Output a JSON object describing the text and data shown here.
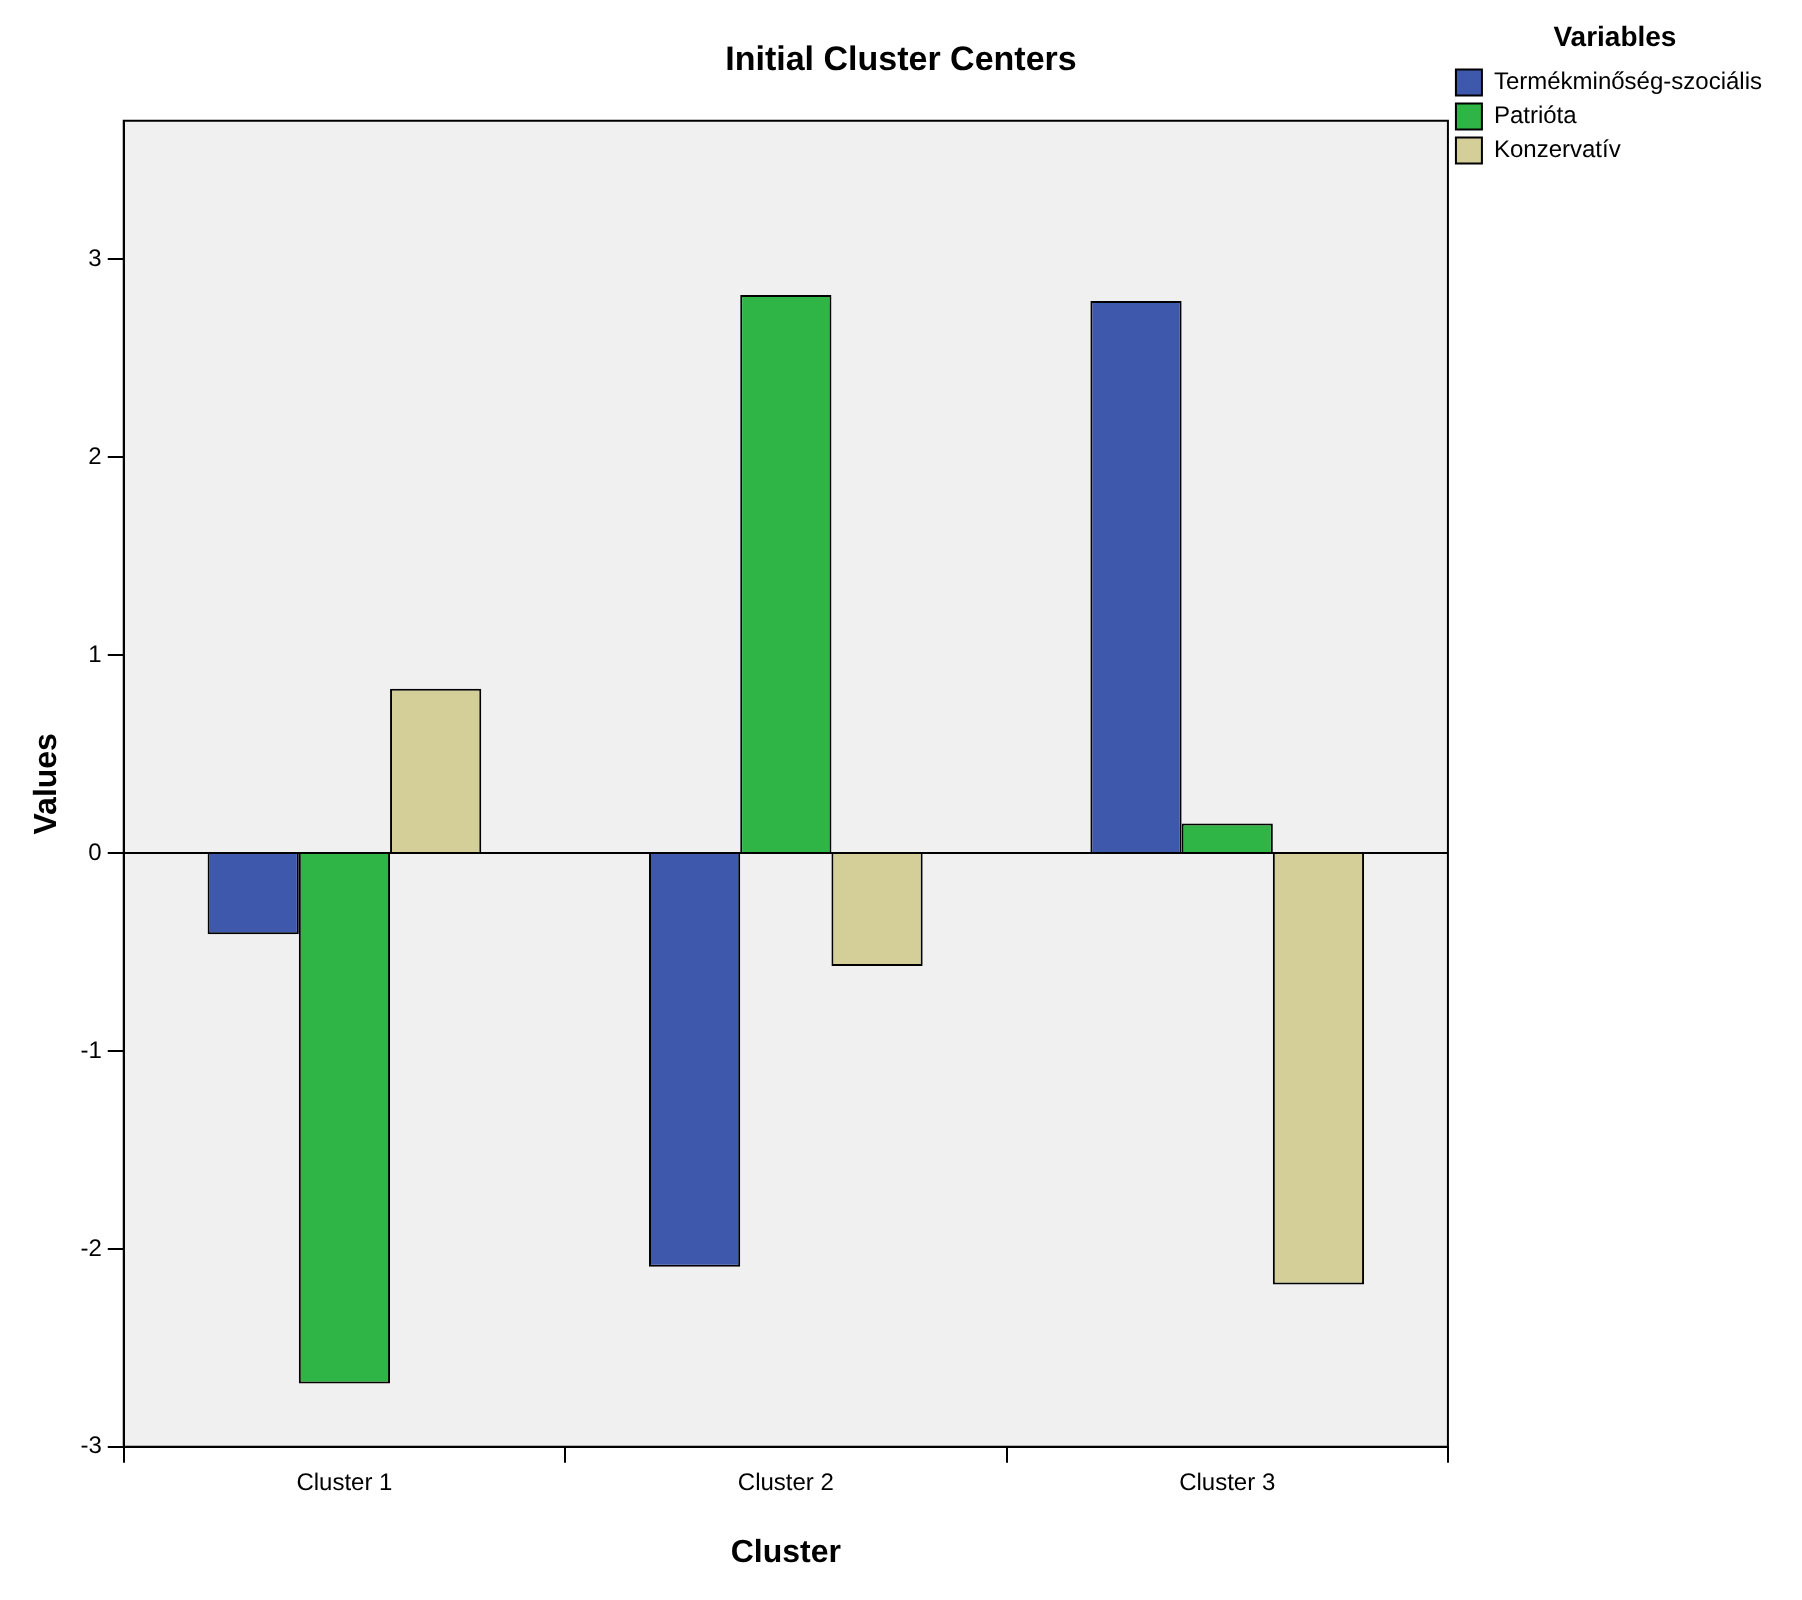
{
  "chart_data": {
    "type": "bar",
    "title": "Initial Cluster Centers",
    "xlabel": "Cluster",
    "ylabel": "Values",
    "legend_title": "Variables",
    "categories": [
      "Cluster 1",
      "Cluster 2",
      "Cluster 3"
    ],
    "series": [
      {
        "name": "Termékminőség-szociális",
        "color": "#3e58ac",
        "values": [
          -0.41,
          -2.09,
          2.79
        ]
      },
      {
        "name": "Patrióta",
        "color": "#2fb545",
        "values": [
          -2.68,
          2.82,
          0.15
        ]
      },
      {
        "name": "Konzervatív",
        "color": "#d4ce98",
        "values": [
          0.83,
          -0.57,
          -2.18
        ]
      }
    ],
    "ylim": [
      -3,
      3.7
    ],
    "yticks": [
      -3,
      -2,
      -1,
      0,
      1,
      2,
      3
    ],
    "grid": false,
    "legend": "top right",
    "ref_lines": [
      {
        "axis": "y",
        "value": 0,
        "color": "#000000"
      }
    ]
  }
}
